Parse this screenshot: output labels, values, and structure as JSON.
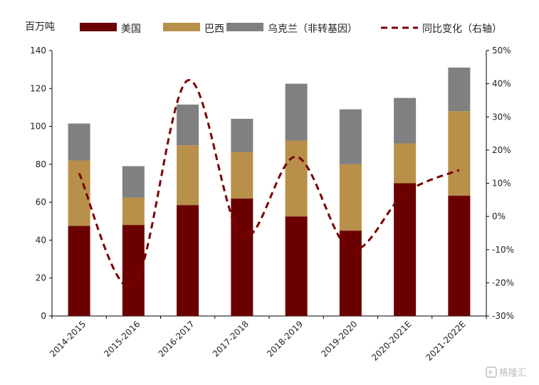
{
  "chart_data": {
    "type": "bar",
    "stacked": true,
    "unit_label": "百万吨",
    "categories": [
      "2014-2015",
      "2015-2016",
      "2016-2017",
      "2017-2018",
      "2018-2019",
      "2019-2020",
      "2020-2021E",
      "2021-2022E"
    ],
    "series": [
      {
        "name": "美国",
        "color": "#6b0000",
        "values": [
          47.5,
          48,
          58.5,
          62,
          52.5,
          45,
          70,
          63.5
        ]
      },
      {
        "name": "巴西",
        "color": "#b8904a",
        "values": [
          34.5,
          14.5,
          31.5,
          24.5,
          40,
          35,
          21,
          44.5
        ]
      },
      {
        "name": "乌克兰（非转基因）",
        "color": "#808080",
        "values": [
          19.5,
          16.5,
          21.5,
          17.5,
          30,
          29,
          24,
          23
        ]
      }
    ],
    "line_series": {
      "name": "同比变化（右轴）",
      "axis": "right",
      "color": "#7a0000",
      "dash": true,
      "values": [
        13,
        -21,
        41,
        -6,
        18,
        -10,
        7,
        14
      ]
    },
    "ylim_left": [
      0,
      140
    ],
    "ytick_left": [
      "0",
      "20",
      "40",
      "60",
      "80",
      "100",
      "120",
      "140"
    ],
    "ylim_right": [
      -30,
      50
    ],
    "ytick_right": [
      "-30%",
      "-20%",
      "-10%",
      "0%",
      "10%",
      "20%",
      "30%",
      "40%",
      "50%"
    ],
    "legend_position": "top",
    "grid": false
  },
  "watermark": "格隆汇"
}
